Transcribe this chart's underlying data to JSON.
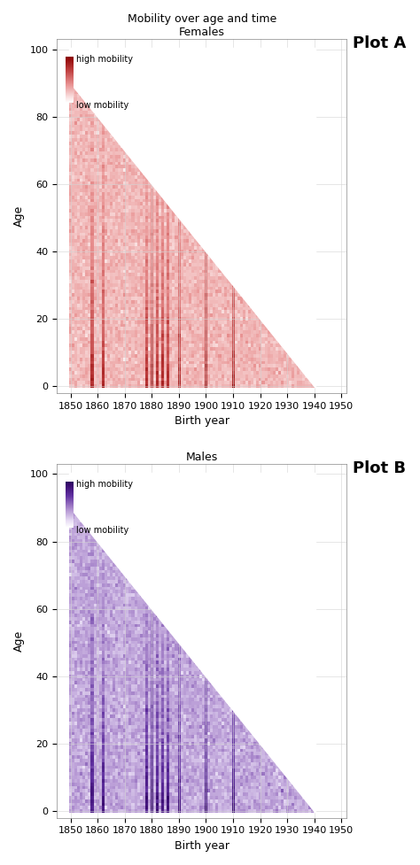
{
  "title_line1": "Mobility over age and time",
  "title_line2_female": "Females",
  "title_line2_male": "Males",
  "label_plot_a": "Plot A",
  "label_plot_b": "Plot B",
  "xlabel": "Birth year",
  "ylabel": "Age",
  "birth_year_min": 1850,
  "birth_year_max": 1944,
  "age_min": 0,
  "age_max": 100,
  "xlim": [
    1845,
    1952
  ],
  "ylim": [
    -2,
    103
  ],
  "xticks": [
    1850,
    1860,
    1870,
    1880,
    1890,
    1900,
    1910,
    1920,
    1930,
    1940,
    1950
  ],
  "yticks": [
    0,
    20,
    40,
    60,
    80,
    100
  ],
  "calendar_year_min": 1850,
  "calendar_year_max": 1940,
  "high_mobility_birth_years": [
    1858,
    1862,
    1878,
    1880,
    1882,
    1884,
    1886,
    1890,
    1900,
    1910
  ],
  "figsize": [
    4.74,
    9.77
  ],
  "dpi": 100,
  "legend_label_high": "high mobility",
  "legend_label_low": "low mobility"
}
